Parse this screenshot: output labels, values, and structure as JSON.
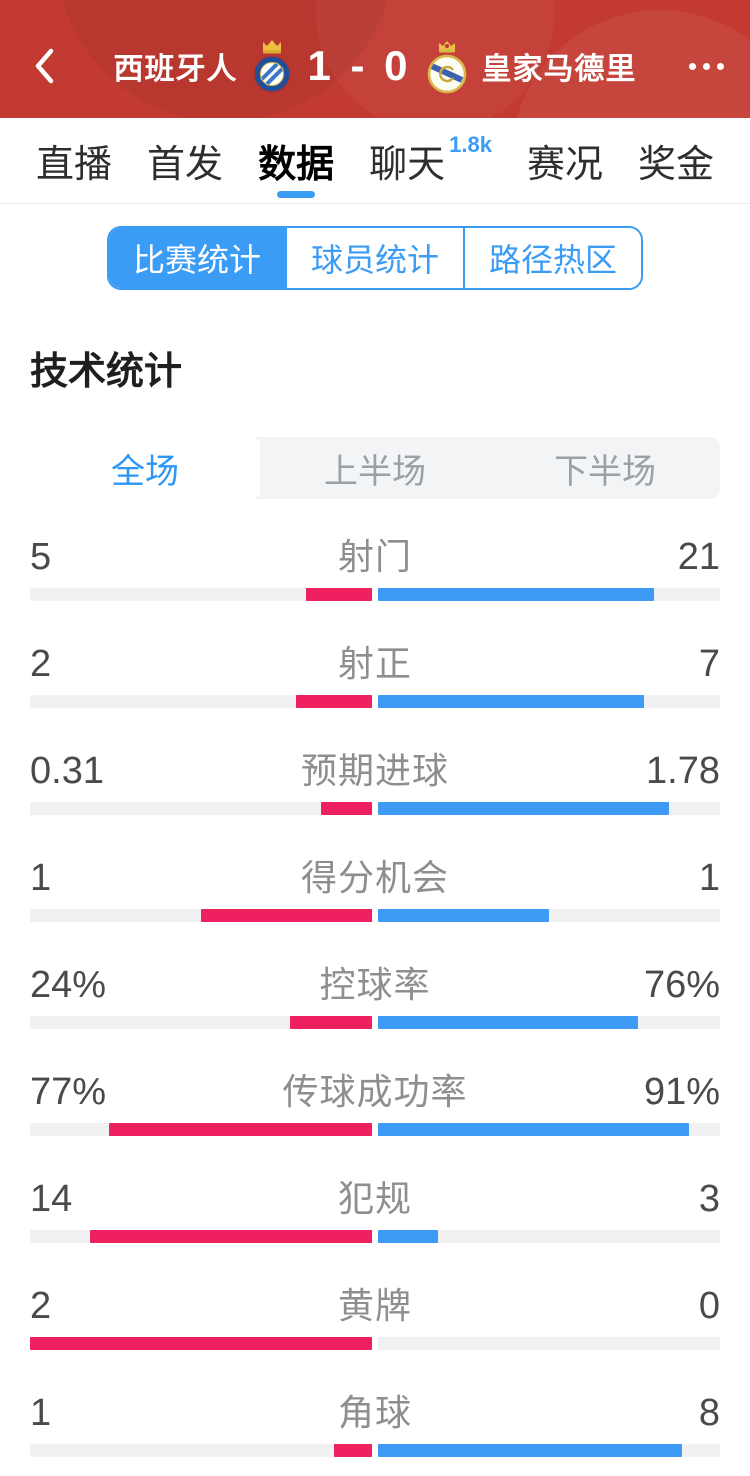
{
  "header": {
    "home_team": "西班牙人",
    "away_team": "皇家马德里",
    "score_display": "1 - 0",
    "icons": {
      "back": "chevron-left",
      "more": "ellipsis-horizontal",
      "home_crest": "espanyol-crest",
      "away_crest": "real-madrid-crest"
    },
    "colors": {
      "bar_background": "#c23a31",
      "text": "#ffffff"
    }
  },
  "nav": {
    "items": [
      {
        "label": "直播",
        "active": false
      },
      {
        "label": "首发",
        "active": false
      },
      {
        "label": "数据",
        "active": true
      },
      {
        "label": "聊天",
        "active": false,
        "badge": "1.8k"
      },
      {
        "label": "赛况",
        "active": false
      },
      {
        "label": "奖金",
        "active": false
      }
    ],
    "active_underline_color": "#3b9cf5"
  },
  "sub_tabs": {
    "items": [
      {
        "label": "比赛统计",
        "active": true
      },
      {
        "label": "球员统计",
        "active": false
      },
      {
        "label": "路径热区",
        "active": false
      }
    ],
    "accent_color": "#3b9cf5"
  },
  "section_title": "技术统计",
  "period_tabs": {
    "items": [
      {
        "label": "全场",
        "active": true
      },
      {
        "label": "上半场",
        "active": false
      },
      {
        "label": "下半场",
        "active": false
      }
    ]
  },
  "chart_data": {
    "type": "bar",
    "orientation": "horizontal-paired-from-center",
    "title": "技术统计",
    "legend": {
      "left_series": "西班牙人",
      "right_series": "皇家马德里"
    },
    "categories": [
      "射门",
      "射正",
      "预期进球",
      "得分机会",
      "控球率",
      "传球成功率",
      "犯规",
      "黄牌",
      "角球"
    ],
    "series": [
      {
        "name": "西班牙人",
        "values": [
          5,
          2,
          0.31,
          1,
          24,
          77,
          14,
          2,
          1
        ]
      },
      {
        "name": "皇家马德里",
        "values": [
          21,
          7,
          1.78,
          1,
          76,
          91,
          3,
          0,
          8
        ]
      }
    ],
    "rows": [
      {
        "label": "射门",
        "home": "5",
        "away": "21",
        "home_pct": 19.2,
        "away_pct": 80.8
      },
      {
        "label": "射正",
        "home": "2",
        "away": "7",
        "home_pct": 22.2,
        "away_pct": 77.8
      },
      {
        "label": "预期进球",
        "home": "0.31",
        "away": "1.78",
        "home_pct": 14.8,
        "away_pct": 85.2
      },
      {
        "label": "得分机会",
        "home": "1",
        "away": "1",
        "home_pct": 50,
        "away_pct": 50
      },
      {
        "label": "控球率",
        "home": "24%",
        "away": "76%",
        "home_pct": 24,
        "away_pct": 76
      },
      {
        "label": "传球成功率",
        "home": "77%",
        "away": "91%",
        "home_pct": 77,
        "away_pct": 91
      },
      {
        "label": "犯规",
        "home": "14",
        "away": "3",
        "home_pct": 82.4,
        "away_pct": 17.6
      },
      {
        "label": "黄牌",
        "home": "2",
        "away": "0",
        "home_pct": 100,
        "away_pct": 0
      },
      {
        "label": "角球",
        "home": "1",
        "away": "8",
        "home_pct": 11.1,
        "away_pct": 88.9
      }
    ],
    "colors": {
      "home_bar": "#ee205f",
      "away_bar": "#3e9bf5",
      "track": "#f1f1f3"
    }
  }
}
